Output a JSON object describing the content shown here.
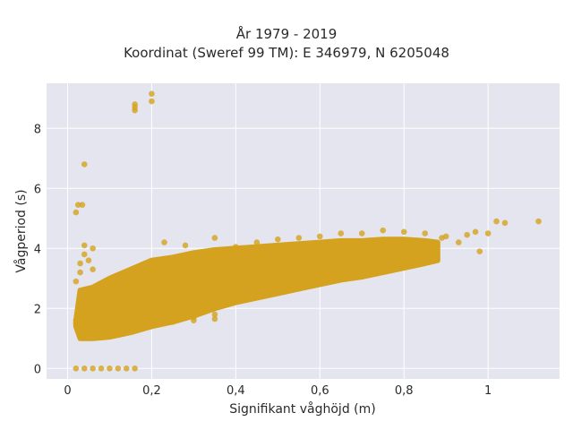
{
  "chart_data": {
    "type": "scatter",
    "title_line1": "År 1979 - 2019",
    "title_line2": "Koordinat (Sweref 99 TM): E 346979, N 6205048",
    "xlabel": "Signifikant våghöjd (m)",
    "ylabel": "Vågperiod (s)",
    "xlim": [
      -0.05,
      1.17
    ],
    "ylim": [
      -0.35,
      9.5
    ],
    "x_ticks": [
      0,
      0.2,
      0.4,
      0.6,
      0.8,
      1
    ],
    "x_tick_labels": [
      "0",
      "0,2",
      "0,4",
      "0,6",
      "0,8",
      "1"
    ],
    "y_ticks": [
      0,
      2,
      4,
      6,
      8
    ],
    "y_tick_labels": [
      "0",
      "2",
      "4",
      "6",
      "8"
    ],
    "grid": true,
    "legend": "none",
    "colors": {
      "marker": "#D4A21E",
      "plot_background": "#E5E5EF",
      "grid": "#ffffff"
    },
    "series": [
      {
        "points": [
          [
            0.02,
            1.5
          ],
          [
            0.02,
            1.6
          ],
          [
            0.03,
            1.4
          ],
          [
            0.03,
            1.7
          ],
          [
            0.04,
            1.5
          ],
          [
            0.05,
            1.2
          ],
          [
            0.05,
            2.0
          ],
          [
            0.02,
            2.9
          ],
          [
            0.03,
            3.2
          ],
          [
            0.03,
            3.5
          ],
          [
            0.04,
            3.8
          ],
          [
            0.04,
            4.1
          ],
          [
            0.05,
            3.6
          ],
          [
            0.06,
            3.3
          ],
          [
            0.02,
            5.2
          ],
          [
            0.025,
            5.45
          ],
          [
            0.035,
            5.45
          ],
          [
            0.04,
            6.8
          ],
          [
            0.06,
            4.0
          ],
          [
            0.02,
            0.0
          ],
          [
            0.04,
            0.0
          ],
          [
            0.06,
            0.0
          ],
          [
            0.08,
            0.0
          ],
          [
            0.1,
            0.0
          ],
          [
            0.12,
            0.0
          ],
          [
            0.14,
            0.0
          ],
          [
            0.16,
            0.0
          ],
          [
            0.08,
            1.1
          ],
          [
            0.1,
            1.15
          ],
          [
            0.12,
            1.2
          ],
          [
            0.15,
            1.3
          ],
          [
            0.2,
            1.5
          ],
          [
            0.25,
            1.6
          ],
          [
            0.3,
            1.7
          ],
          [
            0.35,
            1.8
          ],
          [
            0.1,
            2.6
          ],
          [
            0.15,
            3.0
          ],
          [
            0.2,
            3.3
          ],
          [
            0.25,
            3.55
          ],
          [
            0.3,
            3.75
          ],
          [
            0.35,
            3.9
          ],
          [
            0.4,
            4.05
          ],
          [
            0.45,
            4.2
          ],
          [
            0.5,
            4.3
          ],
          [
            0.55,
            4.35
          ],
          [
            0.6,
            4.4
          ],
          [
            0.65,
            4.5
          ],
          [
            0.7,
            4.5
          ],
          [
            0.75,
            4.6
          ],
          [
            0.8,
            4.55
          ],
          [
            0.85,
            4.5
          ],
          [
            0.9,
            4.4
          ],
          [
            0.95,
            4.45
          ],
          [
            0.97,
            4.55
          ],
          [
            1.0,
            4.5
          ],
          [
            1.02,
            4.9
          ],
          [
            1.04,
            4.85
          ],
          [
            1.12,
            4.9
          ],
          [
            0.98,
            3.9
          ],
          [
            0.93,
            4.2
          ],
          [
            0.89,
            4.35
          ],
          [
            0.87,
            4.1
          ],
          [
            0.16,
            8.6
          ],
          [
            0.16,
            8.7
          ],
          [
            0.16,
            8.8
          ],
          [
            0.2,
            8.9
          ],
          [
            0.2,
            9.15
          ],
          [
            0.23,
            4.2
          ],
          [
            0.28,
            4.1
          ],
          [
            0.35,
            4.35
          ],
          [
            0.25,
            1.55
          ],
          [
            0.3,
            1.6
          ],
          [
            0.35,
            1.65
          ]
        ]
      }
    ],
    "density_band": [
      [
        0.02,
        1.4,
        1.6
      ],
      [
        0.03,
        1.0,
        2.6
      ],
      [
        0.06,
        1.0,
        2.7
      ],
      [
        0.1,
        1.05,
        3.0
      ],
      [
        0.15,
        1.2,
        3.3
      ],
      [
        0.2,
        1.4,
        3.6
      ],
      [
        0.25,
        1.55,
        3.7
      ],
      [
        0.3,
        1.75,
        3.85
      ],
      [
        0.35,
        2.0,
        3.95
      ],
      [
        0.4,
        2.2,
        4.0
      ],
      [
        0.45,
        2.35,
        4.05
      ],
      [
        0.5,
        2.5,
        4.1
      ],
      [
        0.55,
        2.65,
        4.15
      ],
      [
        0.6,
        2.8,
        4.2
      ],
      [
        0.65,
        2.95,
        4.25
      ],
      [
        0.7,
        3.05,
        4.25
      ],
      [
        0.75,
        3.2,
        4.3
      ],
      [
        0.8,
        3.35,
        4.3
      ],
      [
        0.85,
        3.5,
        4.25
      ],
      [
        0.88,
        3.6,
        4.2
      ]
    ]
  }
}
